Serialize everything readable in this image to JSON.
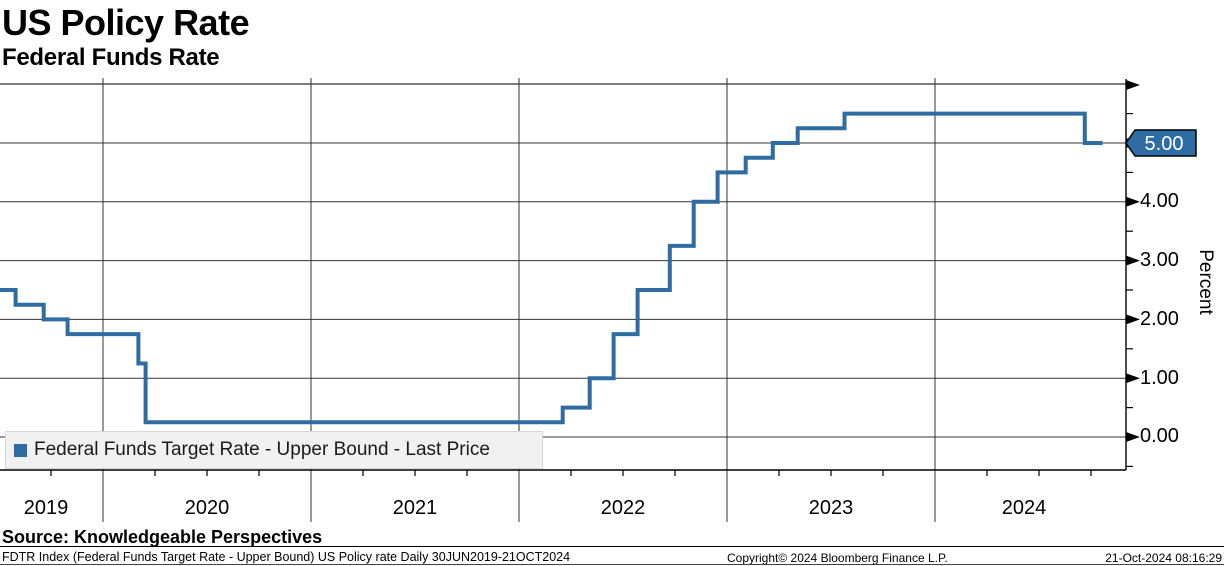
{
  "header": {
    "title": "US Policy Rate",
    "subtitle": "Federal Funds Rate"
  },
  "chart_data": {
    "type": "line",
    "style": "step-after",
    "title": "US Policy Rate",
    "subtitle": "Federal Funds Rate",
    "series": [
      {
        "name": "Federal Funds Target Rate - Upper Bound - Last Price",
        "color": "#2e6da4",
        "points": [
          {
            "x": 2019.494,
            "y": 2.5
          },
          {
            "x": 2019.58,
            "y": 2.25
          },
          {
            "x": 2019.715,
            "y": 2.0
          },
          {
            "x": 2019.83,
            "y": 1.75
          },
          {
            "x": 2020.17,
            "y": 1.25
          },
          {
            "x": 2020.205,
            "y": 0.25
          },
          {
            "x": 2022.21,
            "y": 0.5
          },
          {
            "x": 2022.34,
            "y": 1.0
          },
          {
            "x": 2022.455,
            "y": 1.75
          },
          {
            "x": 2022.57,
            "y": 2.5
          },
          {
            "x": 2022.725,
            "y": 3.25
          },
          {
            "x": 2022.84,
            "y": 4.0
          },
          {
            "x": 2022.955,
            "y": 4.5
          },
          {
            "x": 2023.09,
            "y": 4.75
          },
          {
            "x": 2023.22,
            "y": 5.0
          },
          {
            "x": 2023.34,
            "y": 5.25
          },
          {
            "x": 2023.565,
            "y": 5.5
          },
          {
            "x": 2024.72,
            "y": 5.0
          },
          {
            "x": 2024.806,
            "y": 5.0
          }
        ]
      }
    ],
    "x_axis": {
      "tick_labels": [
        "2019",
        "2020",
        "2021",
        "2022",
        "2023",
        "2024"
      ],
      "range_note": "30JUN2019 to 21OCT2024",
      "range": [
        2019.494,
        2024.806
      ],
      "grid": "vertical lines at year boundaries, quarterly minor ticks"
    },
    "y_axis": {
      "title": "Percent",
      "side": "right",
      "tick_labels": [
        "4.00",
        "3.00",
        "2.00",
        "1.00",
        "0.00"
      ],
      "tick_values": [
        4,
        3,
        2,
        1,
        0
      ],
      "minor_tick_step": 0.5,
      "range": [
        -0.6,
        6.0
      ],
      "grid": "horizontal lines at integer values"
    },
    "last_price": {
      "label": "5.00",
      "value": 5.0,
      "tag_color": "#2e6da4"
    },
    "legend": {
      "label": "Federal Funds Target Rate - Upper Bound - Last Price",
      "marker_color": "#2e6da4",
      "position": "bottom-left inside plot"
    },
    "colors": {
      "line": "#2e6da4",
      "grid": "#333333",
      "tag_fill": "#2e6da4",
      "tag_text": "#ffffff"
    }
  },
  "footer": {
    "source": "Source: Knowledgeable Perspectives",
    "description": "FDTR Index (Federal Funds Target Rate - Upper Bound) US Policy rate  Daily 30JUN2019-21OCT2024",
    "copyright": "Copyright© 2024 Bloomberg Finance L.P.",
    "timestamp": "21-Oct-2024 08:16:29"
  }
}
